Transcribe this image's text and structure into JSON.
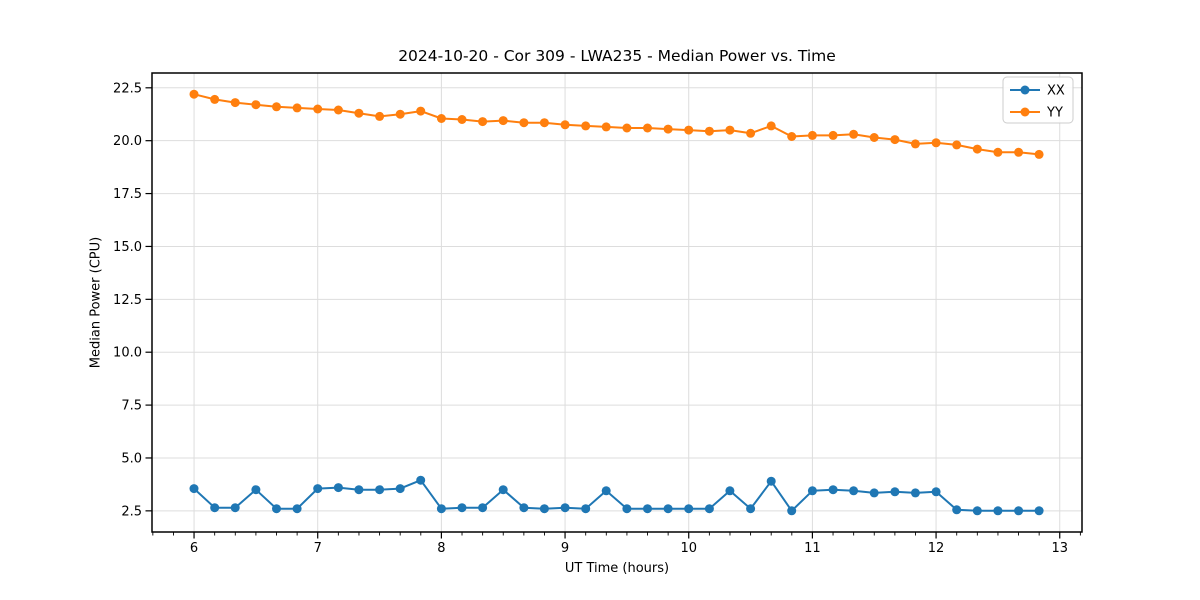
{
  "figure": {
    "title": "2024-10-20 - Cor 309 - LWA235 - Median Power vs. Time",
    "xlabel": "UT Time (hours)",
    "ylabel": "Median Power (CPU)"
  },
  "legend": {
    "position": "upper right",
    "entries": [
      {
        "label": "XX",
        "color": "#1f77b4"
      },
      {
        "label": "YY",
        "color": "#ff7f0e"
      }
    ]
  },
  "chart_data": {
    "type": "line",
    "title": "2024-10-20 - Cor 309 - LWA235 - Median Power vs. Time",
    "xlabel": "UT Time (hours)",
    "ylabel": "Median Power (CPU)",
    "xlim": [
      5.66,
      13.18
    ],
    "ylim": [
      1.5,
      23.2
    ],
    "xticks": [
      6,
      7,
      8,
      9,
      10,
      11,
      12,
      13
    ],
    "xtick_labels": [
      "6",
      "7",
      "8",
      "9",
      "10",
      "11",
      "12",
      "13"
    ],
    "yticks": [
      2.5,
      5.0,
      7.5,
      10.0,
      12.5,
      15.0,
      17.5,
      20.0,
      22.5
    ],
    "ytick_labels": [
      "2.5",
      "5.0",
      "7.5",
      "10.0",
      "12.5",
      "15.0",
      "17.5",
      "20.0",
      "22.5"
    ],
    "x_minor_tick_interval": 0.16667,
    "grid": true,
    "legend_position": "upper right",
    "marker": "circle",
    "x": [
      6.0,
      6.167,
      6.333,
      6.5,
      6.667,
      6.833,
      7.0,
      7.167,
      7.333,
      7.5,
      7.667,
      7.833,
      8.0,
      8.167,
      8.333,
      8.5,
      8.667,
      8.833,
      9.0,
      9.167,
      9.333,
      9.5,
      9.667,
      9.833,
      10.0,
      10.167,
      10.333,
      10.5,
      10.667,
      10.833,
      11.0,
      11.167,
      11.333,
      11.5,
      11.667,
      11.833,
      12.0,
      12.167,
      12.333,
      12.5,
      12.667,
      12.833
    ],
    "series": [
      {
        "name": "XX",
        "color": "#1f77b4",
        "values": [
          3.55,
          2.65,
          2.65,
          3.5,
          2.6,
          2.6,
          3.55,
          3.6,
          3.5,
          3.5,
          3.55,
          3.95,
          2.6,
          2.65,
          2.65,
          3.5,
          2.65,
          2.6,
          2.65,
          2.6,
          3.45,
          2.6,
          2.6,
          2.6,
          2.6,
          2.6,
          3.45,
          2.6,
          3.9,
          2.5,
          3.45,
          3.5,
          3.45,
          3.35,
          3.4,
          3.35,
          3.4,
          2.55,
          2.5,
          2.5,
          2.5,
          2.5
        ]
      },
      {
        "name": "YY",
        "color": "#ff7f0e",
        "values": [
          22.2,
          21.95,
          21.8,
          21.7,
          21.6,
          21.55,
          21.5,
          21.45,
          21.3,
          21.15,
          21.25,
          21.4,
          21.05,
          21.0,
          20.9,
          20.95,
          20.85,
          20.85,
          20.75,
          20.7,
          20.65,
          20.6,
          20.6,
          20.55,
          20.5,
          20.45,
          20.5,
          20.35,
          20.7,
          20.2,
          20.25,
          20.25,
          20.3,
          20.15,
          20.05,
          19.85,
          19.9,
          19.8,
          19.6,
          19.45,
          19.45,
          19.35
        ]
      }
    ],
    "style": {
      "grid_color": "#dddddd",
      "spine_color": "#000000",
      "background": "#ffffff"
    }
  }
}
